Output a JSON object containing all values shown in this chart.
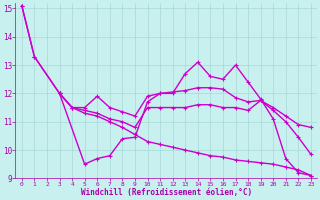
{
  "bg_color": "#c8f0ee",
  "line_color": "#cc00cc",
  "grid_color": "#a8d8d8",
  "xlabel": "Windchill (Refroidissement éolien,°C)",
  "tick_color": "#aa00aa",
  "xlim": [
    -0.5,
    23.5
  ],
  "ylim": [
    9,
    15.2
  ],
  "yticks": [
    9,
    10,
    11,
    12,
    13,
    14,
    15
  ],
  "xticks": [
    0,
    1,
    2,
    3,
    4,
    5,
    6,
    7,
    8,
    9,
    10,
    11,
    12,
    13,
    14,
    15,
    16,
    17,
    18,
    19,
    20,
    21,
    22,
    23
  ],
  "line1_x": [
    0,
    1,
    3,
    5,
    6,
    7,
    8,
    9,
    10,
    11,
    12,
    13,
    14,
    15,
    16,
    17,
    18,
    19,
    20,
    21,
    22,
    23
  ],
  "line1_y": [
    15.1,
    13.3,
    12.0,
    9.5,
    9.7,
    9.8,
    10.4,
    10.45,
    11.7,
    12.0,
    12.0,
    12.7,
    13.1,
    12.6,
    12.5,
    13.0,
    12.4,
    11.8,
    11.1,
    9.7,
    9.2,
    9.1
  ],
  "line2_x": [
    3,
    4,
    5,
    6,
    7,
    8,
    9,
    10,
    11,
    12,
    13,
    14,
    15,
    16,
    17,
    18,
    19,
    20,
    21,
    22,
    23
  ],
  "line2_y": [
    12.0,
    11.5,
    11.5,
    11.9,
    11.5,
    11.35,
    11.2,
    11.9,
    12.0,
    12.05,
    12.1,
    12.2,
    12.2,
    12.15,
    11.85,
    11.7,
    11.75,
    11.4,
    11.0,
    10.45,
    9.85
  ],
  "line3_x": [
    3,
    4,
    5,
    6,
    7,
    8,
    9,
    10,
    11,
    12,
    13,
    14,
    15,
    16,
    17,
    18,
    19,
    20,
    21,
    22,
    23
  ],
  "line3_y": [
    12.0,
    11.5,
    11.4,
    11.3,
    11.1,
    11.0,
    10.8,
    11.5,
    11.5,
    11.5,
    11.5,
    11.6,
    11.6,
    11.5,
    11.5,
    11.4,
    11.75,
    11.5,
    11.2,
    10.9,
    10.8
  ],
  "line4_x": [
    0,
    1,
    3,
    4,
    5,
    6,
    7,
    8,
    9,
    10,
    11,
    12,
    13,
    14,
    15,
    16,
    17,
    18,
    19,
    20,
    21,
    22,
    23
  ],
  "line4_y": [
    15.1,
    13.3,
    12.0,
    11.5,
    11.3,
    11.2,
    11.0,
    10.8,
    10.55,
    10.3,
    10.2,
    10.1,
    10.0,
    9.9,
    9.8,
    9.75,
    9.65,
    9.6,
    9.55,
    9.5,
    9.4,
    9.3,
    9.1
  ],
  "linewidth": 1.0,
  "markersize": 3,
  "marker": "+"
}
